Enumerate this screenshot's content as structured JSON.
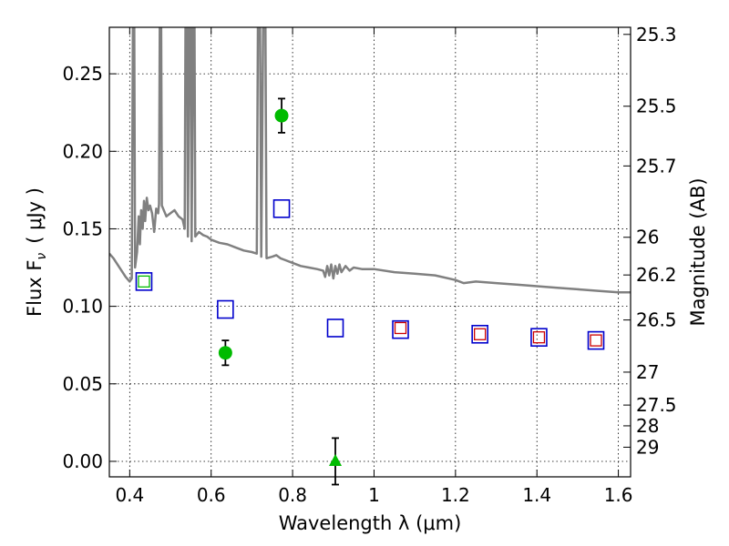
{
  "chart_data": {
    "type": "scatter",
    "xlabel": "Wavelength  λ (μm)",
    "ylabel": "Flux  F",
    "ylabel_sub": "ν",
    "ylabel_unit": "( μJy )",
    "y2label": "Magnitude (AB)",
    "xlim": [
      0.35,
      1.63
    ],
    "ylim": [
      -0.01,
      0.28
    ],
    "grid": true,
    "x_ticks": [
      {
        "value": 0.4,
        "label": "0.4"
      },
      {
        "value": 0.6,
        "label": "0.6"
      },
      {
        "value": 0.8,
        "label": "0.8"
      },
      {
        "value": 1.0,
        "label": "1"
      },
      {
        "value": 1.2,
        "label": "1.2"
      },
      {
        "value": 1.4,
        "label": "1.4"
      },
      {
        "value": 1.6,
        "label": "1.6"
      }
    ],
    "y_ticks": [
      {
        "value": 0.0,
        "label": "0.00"
      },
      {
        "value": 0.05,
        "label": "0.05"
      },
      {
        "value": 0.1,
        "label": "0.10"
      },
      {
        "value": 0.15,
        "label": "0.15"
      },
      {
        "value": 0.2,
        "label": "0.20"
      },
      {
        "value": 0.25,
        "label": "0.25"
      }
    ],
    "y2_ticks": [
      {
        "mag": 25.3,
        "label": "25.3"
      },
      {
        "mag": 25.5,
        "label": "25.5"
      },
      {
        "mag": 25.7,
        "label": "25.7"
      },
      {
        "mag": 26,
        "label": "26"
      },
      {
        "mag": 26.2,
        "label": "26.2"
      },
      {
        "mag": 26.5,
        "label": "26.5"
      },
      {
        "mag": 27,
        "label": "27"
      },
      {
        "mag": 27.5,
        "label": "27.5"
      },
      {
        "mag": 28,
        "label": "28"
      },
      {
        "mag": 29,
        "label": "29"
      }
    ],
    "colors": {
      "spectrum": "#808080",
      "model_box": "#0000cc",
      "red_box": "#cc0000",
      "green": "#00bb00",
      "errorbar": "#000000"
    },
    "spectrum": [
      [
        0.35,
        0.134
      ],
      [
        0.36,
        0.131
      ],
      [
        0.37,
        0.127
      ],
      [
        0.38,
        0.123
      ],
      [
        0.39,
        0.119
      ],
      [
        0.4,
        0.116
      ],
      [
        0.405,
        0.118
      ],
      [
        0.408,
        0.29
      ],
      [
        0.411,
        0.29
      ],
      [
        0.413,
        0.125
      ],
      [
        0.418,
        0.135
      ],
      [
        0.422,
        0.158
      ],
      [
        0.425,
        0.14
      ],
      [
        0.428,
        0.162
      ],
      [
        0.432,
        0.15
      ],
      [
        0.435,
        0.168
      ],
      [
        0.438,
        0.155
      ],
      [
        0.442,
        0.17
      ],
      [
        0.446,
        0.162
      ],
      [
        0.45,
        0.165
      ],
      [
        0.455,
        0.16
      ],
      [
        0.46,
        0.148
      ],
      [
        0.465,
        0.163
      ],
      [
        0.47,
        0.16
      ],
      [
        0.472,
        0.166
      ],
      [
        0.474,
        0.29
      ],
      [
        0.477,
        0.29
      ],
      [
        0.479,
        0.165
      ],
      [
        0.49,
        0.158
      ],
      [
        0.5,
        0.16
      ],
      [
        0.51,
        0.162
      ],
      [
        0.52,
        0.158
      ],
      [
        0.53,
        0.156
      ],
      [
        0.535,
        0.15
      ],
      [
        0.537,
        0.29
      ],
      [
        0.541,
        0.29
      ],
      [
        0.543,
        0.145
      ],
      [
        0.547,
        0.29
      ],
      [
        0.55,
        0.29
      ],
      [
        0.552,
        0.142
      ],
      [
        0.556,
        0.29
      ],
      [
        0.559,
        0.29
      ],
      [
        0.561,
        0.145
      ],
      [
        0.57,
        0.148
      ],
      [
        0.58,
        0.146
      ],
      [
        0.59,
        0.145
      ],
      [
        0.6,
        0.143
      ],
      [
        0.62,
        0.141
      ],
      [
        0.64,
        0.14
      ],
      [
        0.66,
        0.138
      ],
      [
        0.68,
        0.136
      ],
      [
        0.7,
        0.135
      ],
      [
        0.712,
        0.134
      ],
      [
        0.715,
        0.29
      ],
      [
        0.72,
        0.29
      ],
      [
        0.723,
        0.132
      ],
      [
        0.728,
        0.29
      ],
      [
        0.733,
        0.29
      ],
      [
        0.736,
        0.131
      ],
      [
        0.75,
        0.132
      ],
      [
        0.76,
        0.133
      ],
      [
        0.77,
        0.131
      ],
      [
        0.78,
        0.13
      ],
      [
        0.8,
        0.128
      ],
      [
        0.82,
        0.126
      ],
      [
        0.84,
        0.125
      ],
      [
        0.86,
        0.124
      ],
      [
        0.875,
        0.123
      ],
      [
        0.88,
        0.119
      ],
      [
        0.885,
        0.126
      ],
      [
        0.89,
        0.12
      ],
      [
        0.895,
        0.127
      ],
      [
        0.9,
        0.118
      ],
      [
        0.905,
        0.126
      ],
      [
        0.91,
        0.121
      ],
      [
        0.915,
        0.127
      ],
      [
        0.92,
        0.122
      ],
      [
        0.93,
        0.126
      ],
      [
        0.94,
        0.123
      ],
      [
        0.95,
        0.125
      ],
      [
        0.97,
        0.124
      ],
      [
        1.0,
        0.124
      ],
      [
        1.05,
        0.122
      ],
      [
        1.1,
        0.121
      ],
      [
        1.15,
        0.12
      ],
      [
        1.2,
        0.117
      ],
      [
        1.22,
        0.115
      ],
      [
        1.25,
        0.116
      ],
      [
        1.3,
        0.115
      ],
      [
        1.35,
        0.114
      ],
      [
        1.4,
        0.113
      ],
      [
        1.45,
        0.112
      ],
      [
        1.5,
        0.111
      ],
      [
        1.55,
        0.11
      ],
      [
        1.6,
        0.109
      ],
      [
        1.63,
        0.109
      ]
    ],
    "model_points": [
      {
        "x": 0.435,
        "y": 0.116
      },
      {
        "x": 0.635,
        "y": 0.098
      },
      {
        "x": 0.773,
        "y": 0.163
      },
      {
        "x": 0.905,
        "y": 0.086
      },
      {
        "x": 1.065,
        "y": 0.085
      },
      {
        "x": 1.26,
        "y": 0.082
      },
      {
        "x": 1.405,
        "y": 0.08
      },
      {
        "x": 1.545,
        "y": 0.078
      }
    ],
    "inner_squares": [
      {
        "x": 0.435,
        "y": 0.116,
        "color": "#00bb00"
      },
      {
        "x": 1.065,
        "y": 0.086,
        "color": "#cc0000"
      },
      {
        "x": 1.26,
        "y": 0.082,
        "color": "#cc0000"
      },
      {
        "x": 1.405,
        "y": 0.08,
        "color": "#cc0000"
      },
      {
        "x": 1.545,
        "y": 0.078,
        "color": "#cc0000"
      }
    ],
    "measurements": [
      {
        "x": 0.635,
        "y": 0.07,
        "yerr": 0.008,
        "marker": "circle"
      },
      {
        "x": 0.773,
        "y": 0.223,
        "yerr": 0.011,
        "marker": "circle"
      },
      {
        "x": 0.905,
        "y": 0.0,
        "yerr": 0.015,
        "marker": "triangle"
      }
    ]
  }
}
